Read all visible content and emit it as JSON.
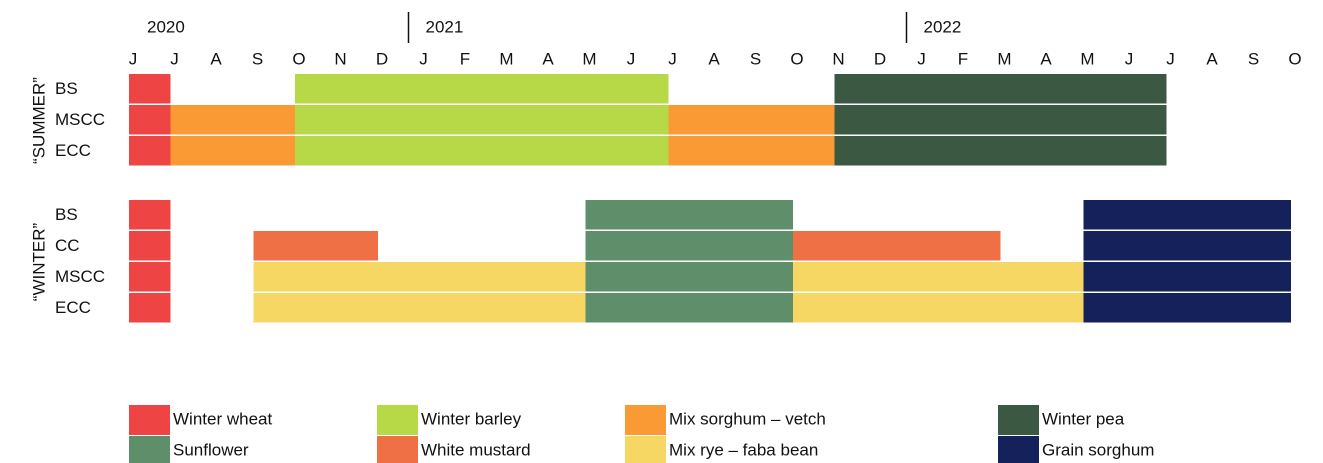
{
  "months": [
    "J",
    "J",
    "A",
    "S",
    "O",
    "N",
    "D",
    "J",
    "F",
    "M",
    "A",
    "M",
    "J",
    "J",
    "A",
    "S",
    "O",
    "N",
    "D",
    "J",
    "F",
    "M",
    "A",
    "M",
    "J",
    "J",
    "A",
    "S",
    "O"
  ],
  "years": [
    {
      "label": "2020",
      "start": 0
    },
    {
      "label": "2021",
      "start": 7
    },
    {
      "label": "2022",
      "start": 19
    }
  ],
  "legend": [
    {
      "name": "Winter wheat",
      "color": "#ee4444"
    },
    {
      "name": "Winter barley",
      "color": "#b8d947"
    },
    {
      "name": "Mix sorghum – vetch",
      "color": "#f99a35"
    },
    {
      "name": "Winter pea",
      "color": "#3b5842"
    },
    {
      "name": "Sunflower",
      "color": "#5f8f6a"
    },
    {
      "name": "White mustard",
      "color": "#ef7045"
    },
    {
      "name": "Mix rye – faba bean",
      "color": "#f7d764"
    },
    {
      "name": "Grain sorghum",
      "color": "#15215a"
    }
  ],
  "groups": [
    {
      "label": "“SUMMER”",
      "rows": [
        {
          "label": "BS",
          "segments": [
            {
              "crop": 0,
              "start": 0,
              "end": 1
            },
            {
              "crop": 1,
              "start": 4,
              "end": 13
            },
            {
              "crop": 3,
              "start": 17,
              "end": 25
            }
          ]
        },
        {
          "label": "MSCC",
          "segments": [
            {
              "crop": 0,
              "start": 0,
              "end": 1
            },
            {
              "crop": 2,
              "start": 1,
              "end": 4
            },
            {
              "crop": 1,
              "start": 4,
              "end": 13
            },
            {
              "crop": 2,
              "start": 13,
              "end": 17
            },
            {
              "crop": 3,
              "start": 17,
              "end": 25
            }
          ]
        },
        {
          "label": "ECC",
          "segments": [
            {
              "crop": 0,
              "start": 0,
              "end": 1
            },
            {
              "crop": 2,
              "start": 1,
              "end": 4
            },
            {
              "crop": 1,
              "start": 4,
              "end": 13
            },
            {
              "crop": 2,
              "start": 13,
              "end": 17
            },
            {
              "crop": 3,
              "start": 17,
              "end": 25
            }
          ]
        }
      ]
    },
    {
      "label": "“WINTER”",
      "rows": [
        {
          "label": "BS",
          "segments": [
            {
              "crop": 0,
              "start": 0,
              "end": 1
            },
            {
              "crop": 4,
              "start": 11,
              "end": 16
            },
            {
              "crop": 7,
              "start": 23,
              "end": 28
            }
          ]
        },
        {
          "label": "CC",
          "segments": [
            {
              "crop": 0,
              "start": 0,
              "end": 1
            },
            {
              "crop": 5,
              "start": 3,
              "end": 6
            },
            {
              "crop": 4,
              "start": 11,
              "end": 16
            },
            {
              "crop": 5,
              "start": 16,
              "end": 21
            },
            {
              "crop": 7,
              "start": 23,
              "end": 28
            }
          ]
        },
        {
          "label": "MSCC",
          "segments": [
            {
              "crop": 0,
              "start": 0,
              "end": 1
            },
            {
              "crop": 6,
              "start": 3,
              "end": 11
            },
            {
              "crop": 4,
              "start": 11,
              "end": 16
            },
            {
              "crop": 6,
              "start": 16,
              "end": 23
            },
            {
              "crop": 7,
              "start": 23,
              "end": 28
            }
          ]
        },
        {
          "label": "ECC",
          "segments": [
            {
              "crop": 0,
              "start": 0,
              "end": 1
            },
            {
              "crop": 6,
              "start": 3,
              "end": 11
            },
            {
              "crop": 4,
              "start": 11,
              "end": 16
            },
            {
              "crop": 6,
              "start": 16,
              "end": 23
            },
            {
              "crop": 7,
              "start": 23,
              "end": 28
            }
          ]
        }
      ]
    }
  ]
}
